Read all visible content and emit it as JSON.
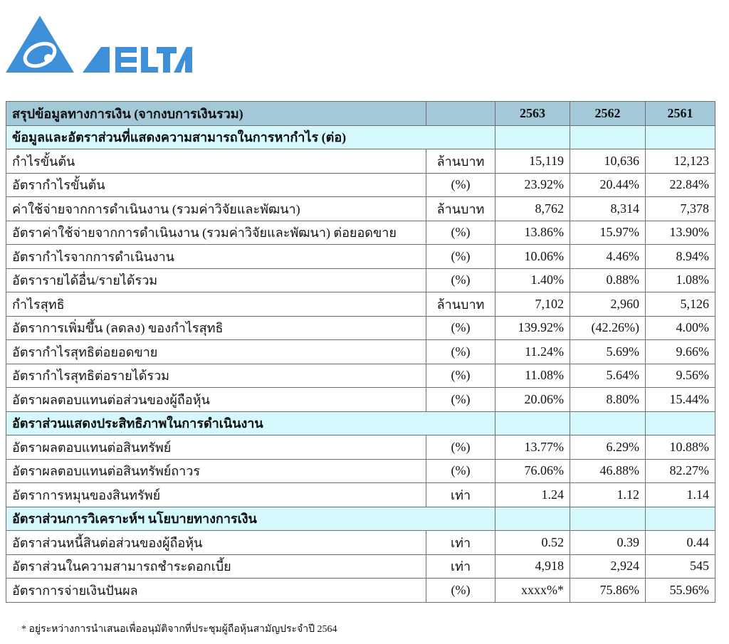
{
  "logo": {
    "text": "DELTA",
    "color": "#3d8fd8"
  },
  "colors": {
    "header_bg": "#a3c8d8",
    "section_bg": "#d4f8fb"
  },
  "table": {
    "title": "สรุปข้อมูลทางการเงิน (จากงบการเงินรวม)",
    "years": [
      "2563",
      "2562",
      "2561"
    ],
    "rows": [
      {
        "type": "section",
        "label": "ข้อมูลและอัตราส่วนที่แสดงความสามารถในการหากำไร (ต่อ)"
      },
      {
        "label": "กำไรขั้นต้น",
        "unit": "ล้านบาท",
        "values": [
          "15,119",
          "10,636",
          "12,123"
        ]
      },
      {
        "label": "อัตรากำไรขั้นต้น",
        "unit": "(%)",
        "values": [
          "23.92%",
          "20.44%",
          "22.84%"
        ]
      },
      {
        "label": "ค่าใช้จ่ายจากการดำเนินงาน  (รวมค่าวิจัยและพัฒนา)",
        "unit": "ล้านบาท",
        "values": [
          "8,762",
          "8,314",
          "7,378"
        ]
      },
      {
        "label": "อัตราค่าใช้จ่ายจากการดำเนินงาน (รวมค่าวิจัยและพัฒนา) ต่อยอดขาย",
        "unit": "(%)",
        "values": [
          "13.86%",
          "15.97%",
          "13.90%"
        ]
      },
      {
        "label": "อัตรากำไรจากการดำเนินงาน",
        "unit": "(%)",
        "values": [
          "10.06%",
          "4.46%",
          "8.94%"
        ]
      },
      {
        "label": "อัตรารายได้อื่น/รายได้รวม",
        "unit": "(%)",
        "values": [
          "1.40%",
          "0.88%",
          "1.08%"
        ]
      },
      {
        "label": "กำไรสุทธิ",
        "unit": "ล้านบาท",
        "values": [
          "7,102",
          "2,960",
          "5,126"
        ]
      },
      {
        "label": "อัตราการเพิ่มขึ้น (ลดลง) ของกำไรสุทธิ",
        "unit": "(%)",
        "values": [
          "139.92%",
          "(42.26%)",
          "4.00%"
        ]
      },
      {
        "label": "อัตรากำไรสุทธิต่อยอดขาย",
        "unit": "(%)",
        "values": [
          "11.24%",
          "5.69%",
          "9.66%"
        ]
      },
      {
        "label": "อัตรากำไรสุทธิต่อรายได้รวม",
        "unit": "(%)",
        "values": [
          "11.08%",
          "5.64%",
          "9.56%"
        ]
      },
      {
        "label": "อัตราผลตอบแทนต่อส่วนของผู้ถือหุ้น",
        "unit": "(%)",
        "values": [
          "20.06%",
          "8.80%",
          "15.44%"
        ]
      },
      {
        "type": "section",
        "label": "อัตราส่วนแสดงประสิทธิภาพในการดำเนินงาน"
      },
      {
        "label": "อัตราผลตอบแทนต่อสินทรัพย์",
        "unit": "(%)",
        "values": [
          "13.77%",
          "6.29%",
          "10.88%"
        ]
      },
      {
        "label": "อัตราผลตอบแทนต่อสินทรัพย์ถาวร",
        "unit": "(%)",
        "values": [
          "76.06%",
          "46.88%",
          "82.27%"
        ]
      },
      {
        "label": "อัตราการหมุนของสินทรัพย์",
        "unit": "เท่า",
        "values": [
          "1.24",
          "1.12",
          "1.14"
        ]
      },
      {
        "type": "section",
        "label": "อัตราส่วนการวิเคราะห์ฯ นโยบายทางการเงิน"
      },
      {
        "label": "อัตราส่วนหนี้สินต่อส่วนของผู้ถือหุ้น",
        "unit": "เท่า",
        "values": [
          "0.52",
          "0.39",
          "0.44"
        ]
      },
      {
        "label": "อัตราส่วนในความสามารถชำระดอกเบี้ย",
        "unit": "เท่า",
        "values": [
          "4,918",
          "2,924",
          "545"
        ]
      },
      {
        "label": "อัตราการจ่ายเงินปันผล",
        "unit": "(%)",
        "values": [
          "xxxx%*",
          "75.86%",
          "55.96%"
        ]
      }
    ]
  },
  "footnote": "* อยู่ระหว่างการนำเสนอเพื่ออนุมัติจากที่ประชุมผู้ถือหุ้นสามัญประจำปี 2564"
}
